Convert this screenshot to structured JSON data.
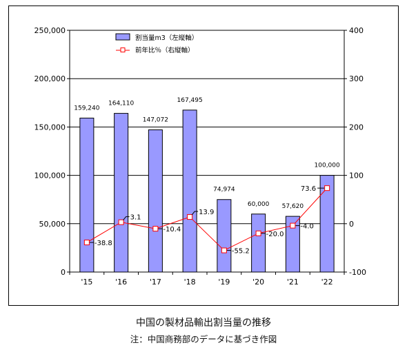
{
  "chart_data": {
    "type": "bar",
    "categories": [
      "'15",
      "'16",
      "'17",
      "'18",
      "'19",
      "'20",
      "'21",
      "'22"
    ],
    "series": [
      {
        "name": "割当量m3（左縦軸）",
        "type": "bar",
        "axis": "left",
        "values": [
          159240,
          164110,
          147072,
          167495,
          74974,
          60000,
          57620,
          100000
        ],
        "labels": [
          "159,240",
          "164,110",
          "147,072",
          "167,495",
          "74,974",
          "60,000",
          "57,620",
          "100,000"
        ]
      },
      {
        "name": "前年比％（右縦軸）",
        "type": "line",
        "axis": "right",
        "values": [
          -38.8,
          3.1,
          -10.4,
          13.9,
          -55.2,
          -20.0,
          -4.0,
          73.6
        ],
        "labels": [
          "-38.8",
          "3.1",
          "-10.4",
          "13.9",
          "-55.2",
          "-20.0",
          "-4.0",
          "73.6"
        ]
      }
    ],
    "y_left": {
      "range": [
        0,
        250000
      ],
      "ticks": [
        0,
        50000,
        100000,
        150000,
        200000,
        250000
      ],
      "tick_labels": [
        "0",
        "50,000",
        "100,000",
        "150,000",
        "200,000",
        "250,000"
      ]
    },
    "y_right": {
      "range": [
        -100,
        400
      ],
      "ticks": [
        -100,
        0,
        100,
        200,
        300,
        400
      ],
      "tick_labels": [
        "-100",
        "0",
        "100",
        "200",
        "300",
        "400"
      ]
    },
    "grid": true,
    "legend_position": "top-left",
    "colors": {
      "bar_fill": "#9999ff",
      "bar_stroke": "#000000",
      "line": "#ff0000",
      "marker_fill": "#ffffff"
    }
  },
  "caption": {
    "title": "中国の製材品輸出割当量の推移",
    "note": "注：中国商務部のデータに基づき作図"
  }
}
